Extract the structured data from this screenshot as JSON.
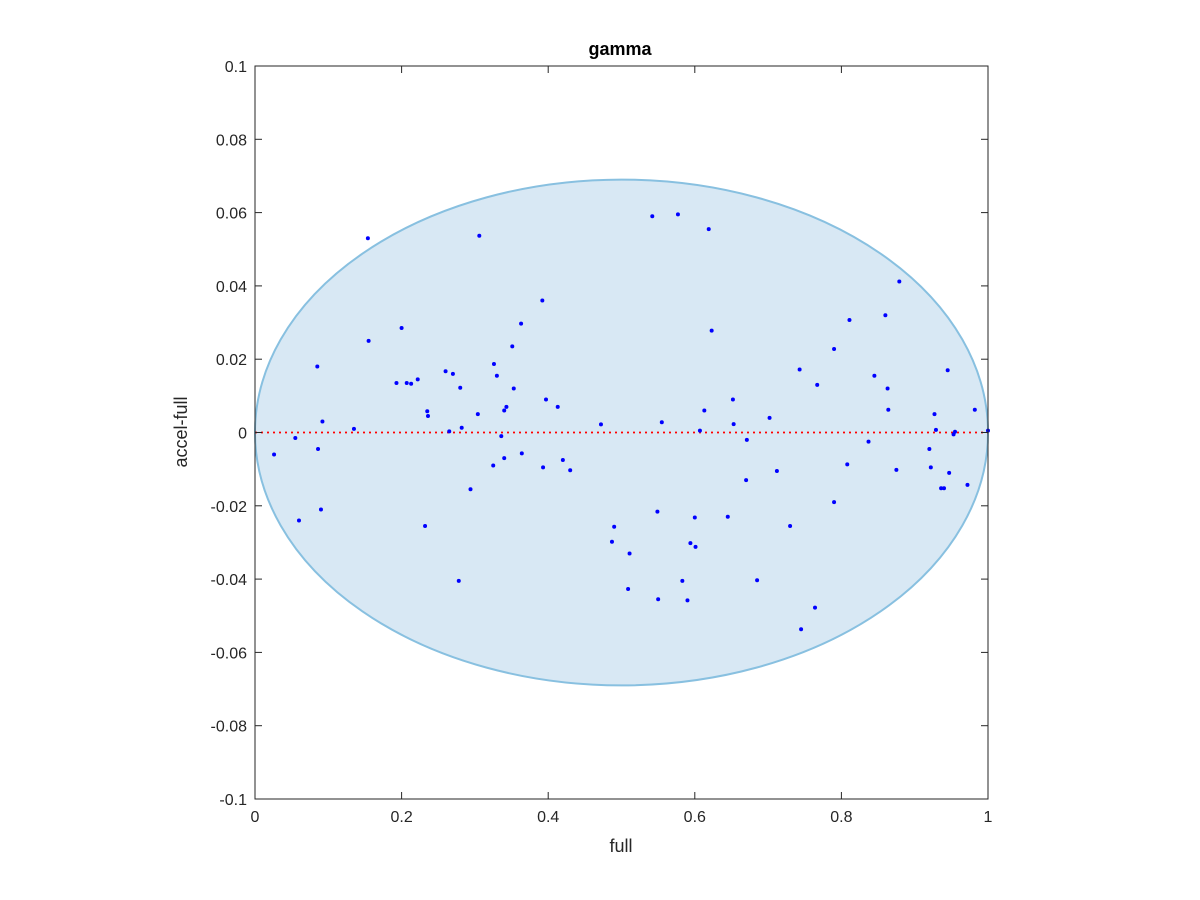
{
  "chart_data": {
    "type": "scatter",
    "title": "gamma",
    "xlabel": "full",
    "ylabel": "accel-full",
    "xlim": [
      0,
      1
    ],
    "ylim": [
      -0.1,
      0.1
    ],
    "xticks": [
      0,
      0.2,
      0.4,
      0.6,
      0.8,
      1
    ],
    "xtick_labels": [
      "0",
      "0.2",
      "0.4",
      "0.6",
      "0.8",
      "1"
    ],
    "yticks": [
      0.1,
      0.08,
      0.06,
      0.04,
      0.02,
      0,
      -0.02,
      -0.04,
      -0.06,
      -0.08,
      -0.1
    ],
    "ytick_labels": [
      "0.1",
      "0.08",
      "0.06",
      "0.04",
      "0.02",
      "0",
      "-0.02",
      "-0.04",
      "-0.06",
      "-0.08",
      "-0.1"
    ],
    "grid": false,
    "reference_line": {
      "y": 0,
      "color": "#ff0000",
      "style": "dotted"
    },
    "ellipse": {
      "cx": 0.5,
      "cy": 0,
      "rx": 0.5,
      "ry": 0.069,
      "fill": "#d8e8f4",
      "stroke": "#88c0e0"
    },
    "colors": {
      "points": "#0000ff",
      "axes": "#262626"
    },
    "points": [
      [
        0.026,
        -0.006
      ],
      [
        0.055,
        -0.0015
      ],
      [
        0.06,
        -0.024
      ],
      [
        0.085,
        0.018
      ],
      [
        0.086,
        -0.0045
      ],
      [
        0.09,
        -0.021
      ],
      [
        0.092,
        0.003
      ],
      [
        0.135,
        0.001
      ],
      [
        0.154,
        0.053
      ],
      [
        0.155,
        0.025
      ],
      [
        0.193,
        0.0135
      ],
      [
        0.2,
        0.0285
      ],
      [
        0.207,
        0.0135
      ],
      [
        0.213,
        0.0133
      ],
      [
        0.222,
        0.0145
      ],
      [
        0.232,
        -0.0255
      ],
      [
        0.235,
        0.0058
      ],
      [
        0.236,
        0.0045
      ],
      [
        0.26,
        0.0167
      ],
      [
        0.265,
        0.0003
      ],
      [
        0.27,
        0.016
      ],
      [
        0.278,
        -0.0405
      ],
      [
        0.28,
        0.0122
      ],
      [
        0.282,
        0.0013
      ],
      [
        0.294,
        -0.0155
      ],
      [
        0.304,
        0.005
      ],
      [
        0.306,
        0.0537
      ],
      [
        0.325,
        -0.009
      ],
      [
        0.326,
        0.0187
      ],
      [
        0.33,
        0.0155
      ],
      [
        0.336,
        -0.001
      ],
      [
        0.34,
        -0.007
      ],
      [
        0.34,
        0.006
      ],
      [
        0.343,
        0.007
      ],
      [
        0.351,
        0.0235
      ],
      [
        0.353,
        0.012
      ],
      [
        0.363,
        0.0297
      ],
      [
        0.364,
        -0.0057
      ],
      [
        0.392,
        0.036
      ],
      [
        0.393,
        -0.0095
      ],
      [
        0.397,
        0.009
      ],
      [
        0.413,
        0.007
      ],
      [
        0.42,
        -0.0075
      ],
      [
        0.43,
        -0.0103
      ],
      [
        0.472,
        0.0022
      ],
      [
        0.487,
        -0.0298
      ],
      [
        0.49,
        -0.0257
      ],
      [
        0.509,
        -0.0427
      ],
      [
        0.511,
        -0.033
      ],
      [
        0.542,
        0.059
      ],
      [
        0.549,
        -0.0216
      ],
      [
        0.55,
        -0.0455
      ],
      [
        0.555,
        0.0028
      ],
      [
        0.577,
        0.0595
      ],
      [
        0.583,
        -0.0405
      ],
      [
        0.59,
        -0.0458
      ],
      [
        0.594,
        -0.0302
      ],
      [
        0.6,
        -0.0232
      ],
      [
        0.601,
        -0.0312
      ],
      [
        0.607,
        0.0005
      ],
      [
        0.613,
        0.006
      ],
      [
        0.619,
        0.0555
      ],
      [
        0.623,
        0.0278
      ],
      [
        0.645,
        -0.023
      ],
      [
        0.652,
        0.009
      ],
      [
        0.653,
        0.0023
      ],
      [
        0.67,
        -0.013
      ],
      [
        0.671,
        -0.002
      ],
      [
        0.685,
        -0.0403
      ],
      [
        0.702,
        0.004
      ],
      [
        0.712,
        -0.0105
      ],
      [
        0.73,
        -0.0255
      ],
      [
        0.743,
        0.0172
      ],
      [
        0.745,
        -0.0537
      ],
      [
        0.764,
        -0.0478
      ],
      [
        0.767,
        0.013
      ],
      [
        0.79,
        0.0228
      ],
      [
        0.79,
        -0.019
      ],
      [
        0.808,
        -0.0087
      ],
      [
        0.811,
        0.0307
      ],
      [
        0.837,
        -0.0025
      ],
      [
        0.845,
        0.0155
      ],
      [
        0.86,
        0.032
      ],
      [
        0.863,
        0.012
      ],
      [
        0.864,
        0.0062
      ],
      [
        0.875,
        -0.0102
      ],
      [
        0.879,
        0.0412
      ],
      [
        0.92,
        -0.0045
      ],
      [
        0.922,
        -0.0095
      ],
      [
        0.927,
        0.005
      ],
      [
        0.929,
        0.0007
      ],
      [
        0.936,
        -0.0152
      ],
      [
        0.94,
        -0.0152
      ],
      [
        0.945,
        0.017
      ],
      [
        0.947,
        -0.011
      ],
      [
        0.953,
        -0.0005
      ],
      [
        0.955,
        0.0002
      ],
      [
        0.972,
        -0.0143
      ],
      [
        0.982,
        0.0062
      ],
      [
        1.0,
        0.0005
      ]
    ]
  }
}
